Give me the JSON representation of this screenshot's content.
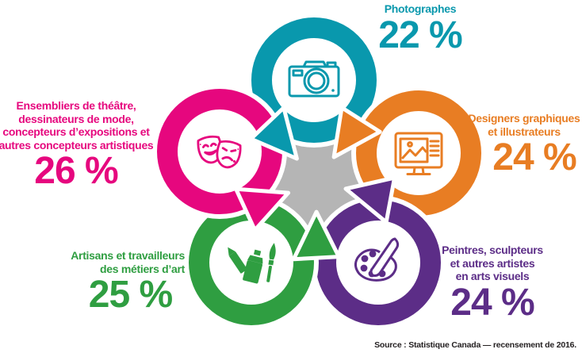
{
  "chart_data": {
    "type": "pie",
    "variant": "circular-pinwheel-infographic",
    "categories": [
      "Photographes",
      "Designers graphiques et illustrateurs",
      "Peintres, sculpteurs et autres artistes en arts visuels",
      "Artisans et travailleurs des métiers d’art",
      "Ensembliers de théâtre, dessinateurs de mode, concepteurs d’expositions et autres concepteurs artistiques"
    ],
    "values": [
      22,
      24,
      24,
      25,
      26
    ],
    "unit": "%",
    "colors": [
      "#0998ad",
      "#e87d23",
      "#5c2d87",
      "#2f9e41",
      "#e6077e"
    ],
    "center_color": "#b5b5b5",
    "legend_position": "around",
    "source": "Source : Statistique Canada — recensement de 2016."
  },
  "center_color": "#b5b5b5",
  "source": "Source : Statistique Canada — recensement de 2016.",
  "segments": [
    {
      "id": "photographes",
      "label": "Photographes",
      "pct": "22 %",
      "value": 22,
      "color": "#0998ad",
      "icon": "camera-icon"
    },
    {
      "id": "designers",
      "label": "Designers graphiques\net illustrateurs",
      "pct": "24 %",
      "value": 24,
      "color": "#e87d23",
      "icon": "design-monitor-icon"
    },
    {
      "id": "peintres",
      "label": "Peintres, sculpteurs\net autres artistes\nen arts visuels",
      "pct": "24 %",
      "value": 24,
      "color": "#5c2d87",
      "icon": "palette-brush-icon"
    },
    {
      "id": "artisans",
      "label": "Artisans et travailleurs\ndes métiers d’art",
      "pct": "25 %",
      "value": 25,
      "color": "#2f9e41",
      "icon": "art-tools-icon"
    },
    {
      "id": "ensembliers",
      "label": "Ensembliers de théâtre,\ndessinateurs de mode,\nconcepteurs d’expositions et\nautres concepteurs artistiques",
      "pct": "26 %",
      "value": 26,
      "color": "#e6077e",
      "icon": "theater-masks-icon"
    }
  ]
}
